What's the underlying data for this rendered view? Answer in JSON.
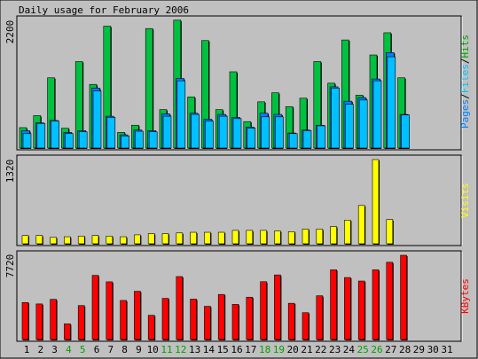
{
  "chart_data": {
    "type": "bar",
    "title": "Daily usage for February 2006",
    "categories": [
      "1",
      "2",
      "3",
      "4",
      "5",
      "6",
      "7",
      "8",
      "9",
      "10",
      "11",
      "12",
      "13",
      "14",
      "15",
      "16",
      "17",
      "18",
      "19",
      "20",
      "21",
      "22",
      "23",
      "24",
      "25",
      "26",
      "27",
      "28",
      "29",
      "30",
      "31"
    ],
    "weekend_days": [
      "4",
      "5",
      "11",
      "12",
      "18",
      "19",
      "25",
      "26"
    ],
    "panels": [
      {
        "id": "hits",
        "ytick": "2200",
        "ymax": 2200,
        "legend": [
          {
            "label": "Pages",
            "color": "#0080ff"
          },
          {
            "label": "Files",
            "color": "#00c0ff"
          },
          {
            "label": "Hits",
            "color": "#00a000"
          }
        ],
        "series": [
          {
            "name": "Hits",
            "color": "#00c040",
            "values": [
              340,
              540,
              1170,
              330,
              1440,
              1060,
              2030,
              260,
              380,
              1990,
              640,
              2130,
              850,
              1790,
              640,
              1270,
              440,
              770,
              920,
              690,
              830,
              1440,
              1080,
              1800,
              880,
              1550,
              1920,
              1170
            ]
          },
          {
            "name": "Files",
            "color": "#00c0ff",
            "values": [
              240,
              410,
              450,
              240,
              270,
              950,
              510,
              200,
              280,
              270,
              530,
              1120,
              560,
              450,
              530,
              490,
              330,
              520,
              520,
              240,
              290,
              370,
              1000,
              730,
              800,
              1120,
              1520,
              550
            ]
          },
          {
            "name": "Pages",
            "color": "#0080ff",
            "values": [
              290,
              420,
              460,
              260,
              290,
              1000,
              530,
              220,
              300,
              290,
              570,
              1160,
              580,
              480,
              560,
              510,
              350,
              580,
              560,
              250,
              300,
              380,
              1020,
              780,
              840,
              1150,
              1590,
              560
            ]
          }
        ]
      },
      {
        "id": "visits",
        "ytick": "1320",
        "ymax": 1320,
        "legend": [
          {
            "label": "Visits",
            "color": "#ffff00"
          }
        ],
        "series": [
          {
            "name": "Visits",
            "color": "#ffff00",
            "values": [
              130,
              130,
              100,
              110,
              120,
              130,
              120,
              110,
              140,
              160,
              160,
              170,
              180,
              180,
              180,
              210,
              210,
              210,
              200,
              190,
              230,
              230,
              270,
              370,
              600,
              1320,
              380,
              0
            ]
          }
        ]
      },
      {
        "id": "kbytes",
        "ytick": "7720",
        "ymax": 7720,
        "legend": [
          {
            "label": "KBytes",
            "color": "#ff0000"
          }
        ],
        "series": [
          {
            "name": "KBytes",
            "color": "#ff0000",
            "values": [
              3390,
              3260,
              3680,
              1440,
              3110,
              5880,
              5290,
              3580,
              4420,
              2220,
              3770,
              5770,
              3700,
              3040,
              4130,
              3220,
              3880,
              5300,
              5920,
              3320,
              2460,
              4010,
              6390,
              5680,
              5360,
              6390,
              7080,
              7720
            ]
          }
        ]
      }
    ]
  }
}
